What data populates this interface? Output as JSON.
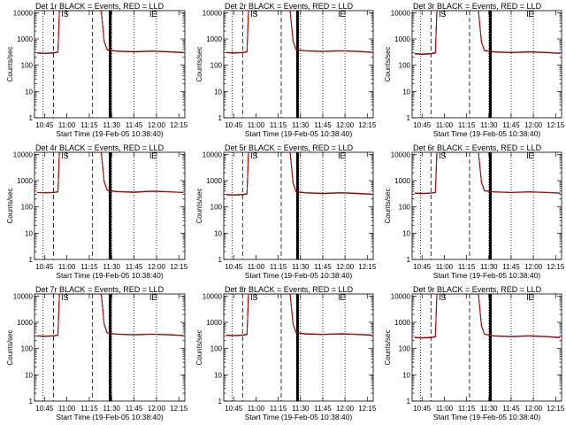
{
  "chart_data": {
    "type": "line",
    "grid_layout": "3x3",
    "x_ticks": [
      "10:45",
      "11:00",
      "11:15",
      "11:30",
      "11:45",
      "12:00",
      "12:15"
    ],
    "x_tick_minutes": [
      0,
      15,
      30,
      45,
      60,
      75,
      90
    ],
    "xlim_minutes": [
      -6.7,
      94
    ],
    "xlabel": "Start Time (19-Feb-05 10:38:40)",
    "ylabel": "Counts/sec",
    "yscale": "log",
    "ylim": [
      1,
      12000
    ],
    "y_ticks": [
      "1",
      "10",
      "100",
      "1000",
      "10000"
    ],
    "y_tick_values": [
      1,
      10,
      100,
      1000,
      10000
    ],
    "series_names": [
      "Events (BLACK)",
      "LLD (RED)"
    ],
    "series_colors": [
      "#000000",
      "#cc0000"
    ],
    "markers": [
      "S",
      "E"
    ],
    "panels": [
      {
        "title": "Det 1r BLACK = Events, RED = LLD",
        "thick_line": 44,
        "series": [
          {
            "name": "Events",
            "x": [
              -5,
              0,
              6,
              9,
              10,
              12,
              38,
              40,
              42,
              48,
              60,
              72,
              84,
              93
            ],
            "y": [
              290,
              280,
              290,
              310,
              12000,
              12000,
              12000,
              800,
              380,
              340,
              320,
              340,
              320,
              300
            ]
          },
          {
            "name": "LLD",
            "x": [
              -5,
              0,
              6,
              9,
              10,
              12,
              38,
              40,
              42,
              48,
              60,
              72,
              84,
              93
            ],
            "y": [
              300,
              290,
              300,
              320,
              12000,
              12000,
              12000,
              830,
              390,
              350,
              330,
              350,
              330,
              310
            ]
          }
        ]
      },
      {
        "title": "Det 2r BLACK = Events, RED = LLD",
        "thick_line": 43,
        "series": [
          {
            "name": "Events",
            "x": [
              -5,
              0,
              6,
              9,
              10,
              12,
              38,
              40,
              42,
              48,
              60,
              72,
              84,
              93
            ],
            "y": [
              300,
              290,
              300,
              320,
              12000,
              12000,
              12000,
              820,
              390,
              350,
              330,
              350,
              330,
              310
            ]
          },
          {
            "name": "LLD",
            "x": [
              -5,
              0,
              6,
              9,
              10,
              12,
              38,
              40,
              42,
              48,
              60,
              72,
              84,
              93
            ],
            "y": [
              310,
              300,
              310,
              330,
              12000,
              12000,
              12000,
              850,
              400,
              360,
              340,
              360,
              340,
              320
            ]
          }
        ]
      },
      {
        "title": "Det 3r BLACK = Events, RED = LLD",
        "thick_line": 46,
        "series": [
          {
            "name": "Events",
            "x": [
              -5,
              0,
              6,
              9,
              10,
              12,
              38,
              40,
              42,
              48,
              60,
              72,
              84,
              93
            ],
            "y": [
              270,
              260,
              270,
              290,
              12000,
              12000,
              12000,
              760,
              360,
              320,
              300,
              320,
              300,
              280
            ]
          },
          {
            "name": "LLD",
            "x": [
              -5,
              0,
              6,
              9,
              10,
              12,
              38,
              40,
              42,
              48,
              60,
              72,
              84,
              93
            ],
            "y": [
              280,
              270,
              280,
              300,
              12000,
              12000,
              12000,
              790,
              370,
              330,
              310,
              330,
              310,
              290
            ]
          }
        ]
      },
      {
        "title": "Det 4r BLACK = Events, RED = LLD",
        "thick_line": 44,
        "series": [
          {
            "name": "Events",
            "x": [
              -5,
              0,
              6,
              9,
              10,
              12,
              38,
              40,
              42,
              48,
              60,
              72,
              84,
              93
            ],
            "y": [
              350,
              340,
              350,
              370,
              12000,
              12000,
              12000,
              900,
              430,
              380,
              360,
              390,
              370,
              350
            ]
          },
          {
            "name": "LLD",
            "x": [
              -5,
              0,
              6,
              9,
              10,
              12,
              38,
              40,
              42,
              48,
              60,
              72,
              84,
              93
            ],
            "y": [
              360,
              350,
              360,
              380,
              12000,
              12000,
              12000,
              930,
              440,
              390,
              370,
              400,
              380,
              360
            ]
          }
        ]
      },
      {
        "title": "Det 5r BLACK = Events, RED = LLD",
        "thick_line": 43,
        "series": [
          {
            "name": "Events",
            "x": [
              -5,
              0,
              6,
              9,
              10,
              12,
              38,
              40,
              42,
              48,
              60,
              72,
              84,
              93
            ],
            "y": [
              290,
              280,
              290,
              310,
              12000,
              12000,
              12000,
              820,
              380,
              340,
              320,
              340,
              320,
              300
            ]
          },
          {
            "name": "LLD",
            "x": [
              -5,
              0,
              6,
              9,
              10,
              12,
              38,
              40,
              42,
              48,
              60,
              72,
              84,
              93
            ],
            "y": [
              300,
              290,
              300,
              320,
              12000,
              12000,
              12000,
              850,
              390,
              350,
              330,
              350,
              330,
              310
            ]
          }
        ]
      },
      {
        "title": "Det 6r BLACK = Events, RED = LLD",
        "thick_line": 46,
        "series": [
          {
            "name": "Events",
            "x": [
              -5,
              0,
              6,
              9,
              10,
              12,
              38,
              40,
              42,
              48,
              60,
              72,
              84,
              93
            ],
            "y": [
              330,
              320,
              330,
              350,
              12000,
              12000,
              12000,
              880,
              410,
              370,
              350,
              370,
              350,
              330
            ]
          },
          {
            "name": "LLD",
            "x": [
              -5,
              0,
              6,
              9,
              10,
              12,
              38,
              40,
              42,
              48,
              60,
              72,
              84,
              93
            ],
            "y": [
              340,
              330,
              340,
              360,
              12000,
              12000,
              12000,
              910,
              420,
              380,
              360,
              380,
              360,
              340
            ]
          }
        ]
      },
      {
        "title": "Det 7r BLACK = Events, RED = LLD",
        "thick_line": 44,
        "series": [
          {
            "name": "Events",
            "x": [
              -5,
              0,
              6,
              9,
              10,
              12,
              38,
              40,
              42,
              48,
              60,
              72,
              84,
              93
            ],
            "y": [
              300,
              290,
              300,
              320,
              12000,
              12000,
              12000,
              820,
              390,
              350,
              330,
              350,
              330,
              310
            ]
          },
          {
            "name": "LLD",
            "x": [
              -5,
              0,
              6,
              9,
              10,
              12,
              38,
              40,
              42,
              48,
              60,
              72,
              84,
              93
            ],
            "y": [
              310,
              300,
              310,
              330,
              12000,
              12000,
              12000,
              850,
              400,
              360,
              340,
              360,
              340,
              320
            ]
          }
        ]
      },
      {
        "title": "Det 8r BLACK = Events, RED = LLD",
        "thick_line": 43,
        "series": [
          {
            "name": "Events",
            "x": [
              -5,
              0,
              6,
              9,
              10,
              12,
              38,
              40,
              42,
              48,
              60,
              72,
              84,
              93
            ],
            "y": [
              320,
              310,
              320,
              340,
              12000,
              12000,
              12000,
              860,
              400,
              360,
              340,
              360,
              340,
              320
            ]
          },
          {
            "name": "LLD",
            "x": [
              -5,
              0,
              6,
              9,
              10,
              12,
              38,
              40,
              42,
              48,
              60,
              72,
              84,
              93
            ],
            "y": [
              330,
              320,
              330,
              350,
              12000,
              12000,
              12000,
              890,
              410,
              370,
              350,
              370,
              350,
              330
            ]
          }
        ]
      },
      {
        "title": "Det 9r BLACK = Events, RED = LLD",
        "thick_line": 46,
        "series": [
          {
            "name": "Events",
            "x": [
              -5,
              0,
              6,
              9,
              10,
              12,
              38,
              40,
              42,
              48,
              60,
              72,
              84,
              93
            ],
            "y": [
              260,
              250,
              260,
              280,
              12000,
              12000,
              12000,
              740,
              350,
              300,
              280,
              300,
              280,
              260
            ]
          },
          {
            "name": "LLD",
            "x": [
              -5,
              0,
              6,
              9,
              10,
              12,
              38,
              40,
              42,
              48,
              60,
              72,
              84,
              93
            ],
            "y": [
              270,
              260,
              270,
              290,
              12000,
              12000,
              12000,
              770,
              360,
              310,
              290,
              310,
              290,
              270
            ]
          }
        ]
      }
    ],
    "dotted_lines_minutes": [
      -1,
      45,
      60,
      75
    ],
    "dashed_lines_minutes": [
      6,
      32
    ],
    "marker_positions_minutes": {
      "S": 12,
      "E": 71
    }
  }
}
